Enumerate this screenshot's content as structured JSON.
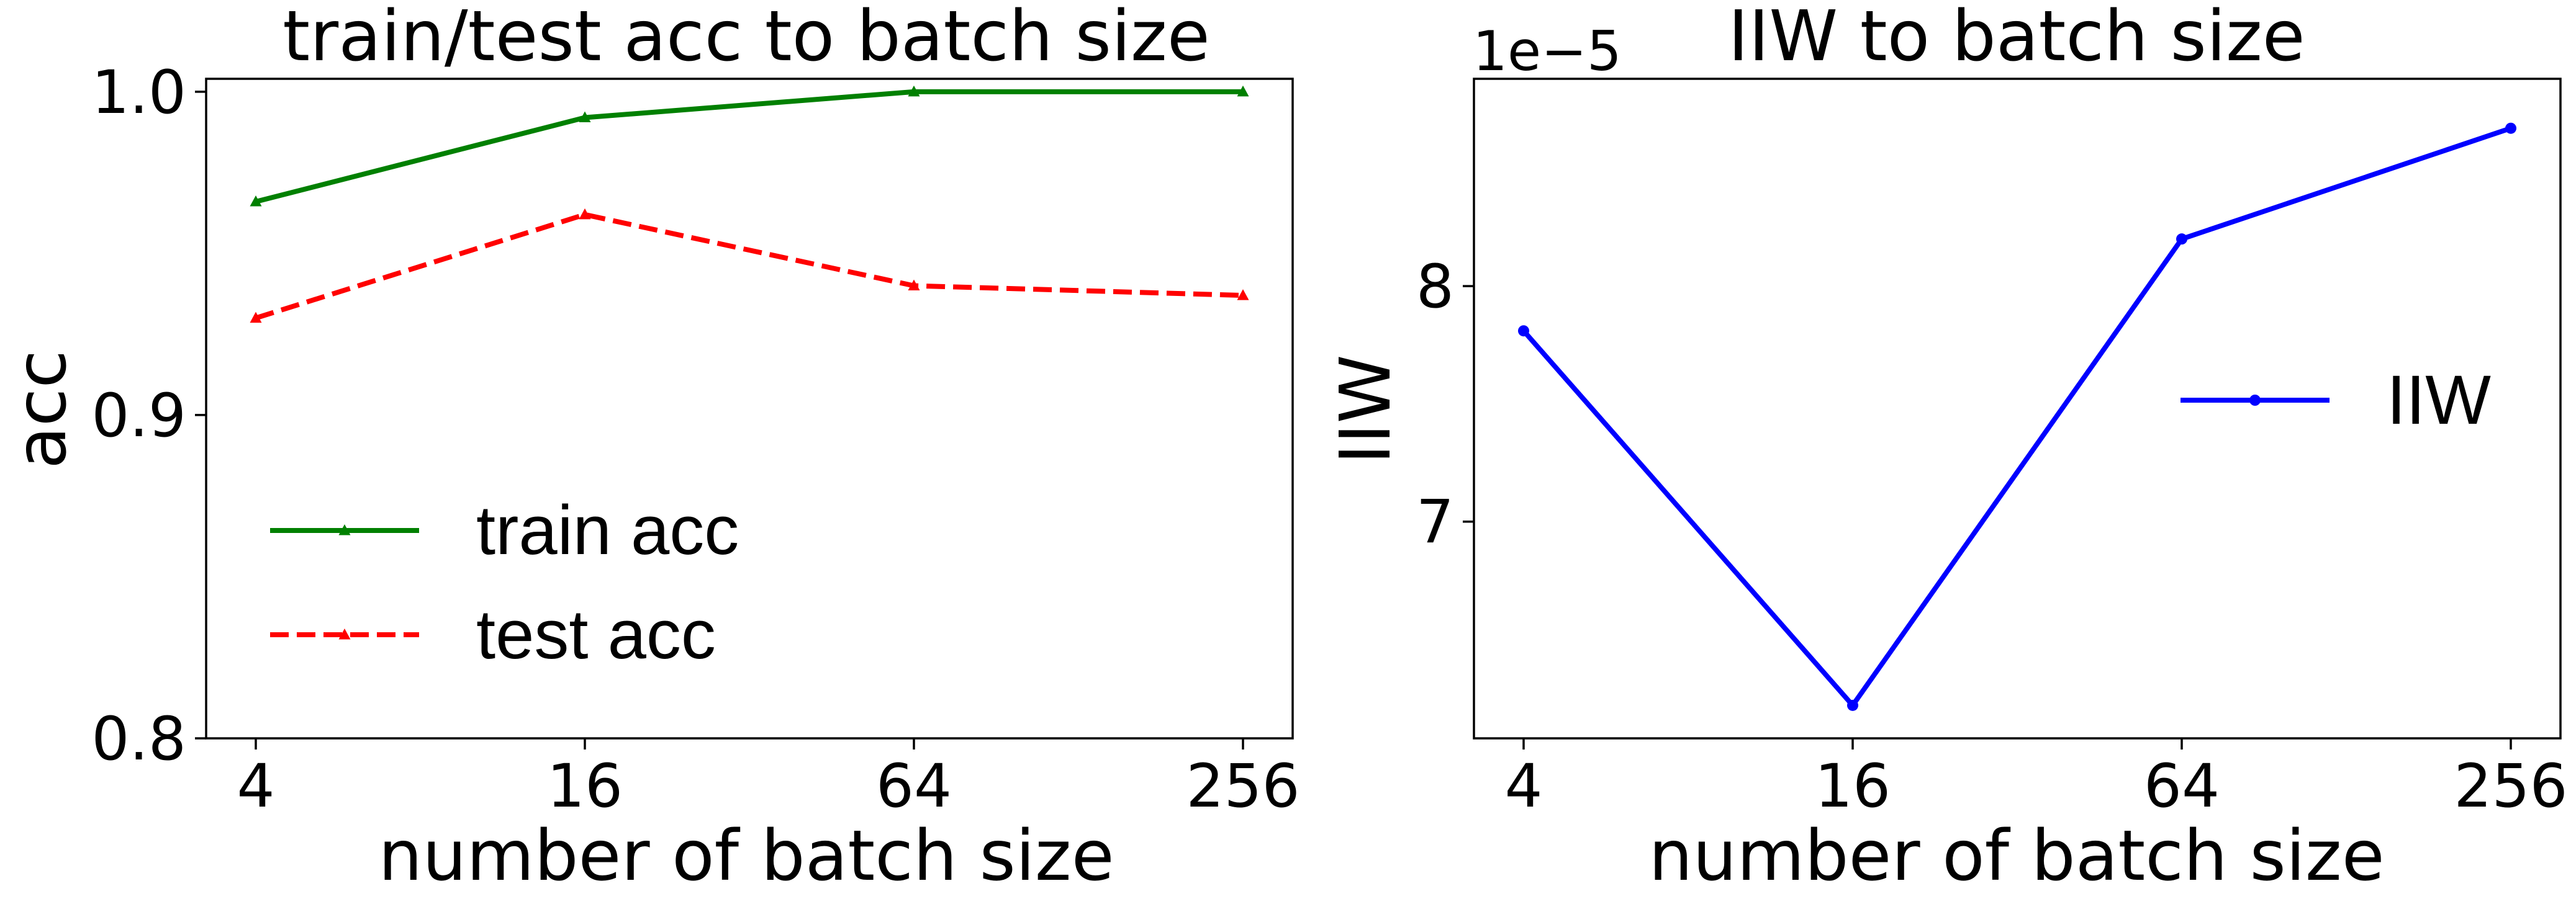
{
  "chart_data": [
    {
      "type": "line",
      "title": "train/test acc to batch size",
      "xlabel": "number of batch size",
      "ylabel": "acc",
      "x": [
        "4",
        "16",
        "64",
        "256"
      ],
      "yticks": [
        0.8,
        0.9,
        1.0
      ],
      "ytick_labels": [
        "0.8",
        "0.9",
        "1.0"
      ],
      "ylim": [
        0.8,
        1.004
      ],
      "legend_position": "lower-left",
      "grid": false,
      "series": [
        {
          "name": "train acc",
          "values": [
            0.966,
            0.992,
            1.0,
            1.0
          ],
          "color": "#008000",
          "style": "solid",
          "marker": "triangle"
        },
        {
          "name": "test acc",
          "values": [
            0.93,
            0.962,
            0.94,
            0.937
          ],
          "color": "#ff0000",
          "style": "dashed",
          "marker": "triangle"
        }
      ]
    },
    {
      "type": "line",
      "title": "IIW to batch size",
      "xlabel": "number of batch size",
      "ylabel": "IIW",
      "x": [
        "4",
        "16",
        "64",
        "256"
      ],
      "offset_label": "1e−5",
      "yticks": [
        7,
        8
      ],
      "ytick_labels": [
        "7",
        "8"
      ],
      "ylim": [
        6.08,
        8.88
      ],
      "legend_position": "center-right",
      "grid": false,
      "series": [
        {
          "name": "IIW",
          "values": [
            7.81,
            6.22,
            8.2,
            8.67
          ],
          "color": "#0000ff",
          "style": "solid",
          "marker": "dot"
        }
      ]
    }
  ]
}
